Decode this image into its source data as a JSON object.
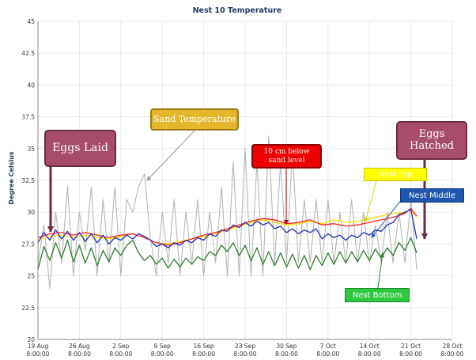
{
  "chart_data": {
    "type": "line",
    "title": "Nest 10 Temperature",
    "ylabel": "Degree Celsius",
    "xlabel": "",
    "ylim": [
      20,
      45
    ],
    "y_ticks": [
      "20",
      "22.5",
      "25",
      "27.5",
      "30",
      "32.5",
      "35",
      "37.5",
      "40",
      "42.5",
      "45"
    ],
    "x_ticks": [
      {
        "d": 0,
        "line1": "19 Aug",
        "line2": "8:00:00"
      },
      {
        "d": 7,
        "line1": "26 Aug",
        "line2": "8:00:00"
      },
      {
        "d": 14,
        "line1": "2 Sep",
        "line2": "8:00:00"
      },
      {
        "d": 21,
        "line1": "9 Sep",
        "line2": "8:00:00"
      },
      {
        "d": 28,
        "line1": "16 Sep",
        "line2": "8:00:00"
      },
      {
        "d": 35,
        "line1": "23 Sep",
        "line2": "8:00:00"
      },
      {
        "d": 42,
        "line1": "30 Sep",
        "line2": "8:00:00"
      },
      {
        "d": 49,
        "line1": "7 Oct",
        "line2": "8:00:00"
      },
      {
        "d": 56,
        "line1": "14 Oct",
        "line2": "8:00:00"
      },
      {
        "d": 63,
        "line1": "21 Oct",
        "line2": "8:00:00"
      },
      {
        "d": 70,
        "line1": "28 Oct",
        "line2": "8:00:00"
      }
    ],
    "grid": true,
    "series": [
      {
        "color": "#b0b0b0",
        "points": [
          [
            0,
            26
          ],
          [
            1,
            29
          ],
          [
            2,
            24
          ],
          [
            3,
            30
          ],
          [
            4,
            26
          ],
          [
            5,
            32
          ],
          [
            6,
            25
          ],
          [
            7,
            30
          ],
          [
            8,
            27
          ],
          [
            9,
            32
          ],
          [
            10,
            25
          ],
          [
            11,
            31
          ],
          [
            12,
            26
          ],
          [
            13,
            32
          ],
          [
            14,
            25
          ],
          [
            15,
            31
          ],
          [
            16,
            30
          ],
          [
            17,
            32
          ],
          [
            18,
            33
          ],
          [
            19,
            28
          ],
          [
            20,
            25
          ],
          [
            21,
            30
          ],
          [
            22,
            26
          ],
          [
            23,
            31
          ],
          [
            24,
            25
          ],
          [
            25,
            30
          ],
          [
            26,
            26
          ],
          [
            27,
            31
          ],
          [
            28,
            25
          ],
          [
            29,
            30
          ],
          [
            30,
            26
          ],
          [
            31,
            32
          ],
          [
            32,
            25
          ],
          [
            33,
            34
          ],
          [
            34,
            25
          ],
          [
            35,
            35
          ],
          [
            36,
            25
          ],
          [
            37,
            34
          ],
          [
            38,
            25
          ],
          [
            39,
            36
          ],
          [
            40,
            26
          ],
          [
            41,
            34
          ],
          [
            42,
            26
          ],
          [
            43,
            35
          ],
          [
            44,
            26
          ],
          [
            45,
            31
          ],
          [
            46,
            26
          ],
          [
            47,
            31
          ],
          [
            48,
            26
          ],
          [
            49,
            31
          ],
          [
            50,
            26
          ],
          [
            51,
            30
          ],
          [
            52,
            26
          ],
          [
            53,
            31
          ],
          [
            54,
            26
          ],
          [
            55,
            30
          ],
          [
            56,
            26
          ],
          [
            57,
            29
          ],
          [
            58,
            26
          ],
          [
            59,
            30
          ],
          [
            60,
            26
          ],
          [
            61,
            30
          ],
          [
            62,
            26
          ],
          [
            63,
            31
          ],
          [
            64,
            25.5
          ]
        ]
      },
      {
        "color": "#ffe000",
        "points": [
          [
            0,
            27.8
          ],
          [
            2,
            28.1
          ],
          [
            4,
            28.2
          ],
          [
            6,
            28.0
          ],
          [
            8,
            28.2
          ],
          [
            10,
            28.0
          ],
          [
            12,
            27.9
          ],
          [
            14,
            28.1
          ],
          [
            16,
            28.3
          ],
          [
            18,
            28.0
          ],
          [
            20,
            27.6
          ],
          [
            22,
            27.5
          ],
          [
            24,
            27.7
          ],
          [
            26,
            27.9
          ],
          [
            28,
            28.1
          ],
          [
            30,
            28.3
          ],
          [
            32,
            28.6
          ],
          [
            34,
            28.9
          ],
          [
            36,
            29.2
          ],
          [
            38,
            29.4
          ],
          [
            40,
            29.2
          ],
          [
            42,
            29.0
          ],
          [
            44,
            29.1
          ],
          [
            46,
            29.3
          ],
          [
            48,
            29.1
          ],
          [
            50,
            29.4
          ],
          [
            52,
            29.2
          ],
          [
            54,
            29.3
          ],
          [
            56,
            29.5
          ],
          [
            58,
            29.7
          ],
          [
            60,
            29.9
          ],
          [
            62,
            30.0
          ],
          [
            63,
            30.2
          ],
          [
            64,
            29.6
          ]
        ]
      },
      {
        "color": "#ff2020",
        "points": [
          [
            0,
            28.0
          ],
          [
            2,
            28.3
          ],
          [
            4,
            28.4
          ],
          [
            6,
            28.2
          ],
          [
            8,
            28.4
          ],
          [
            10,
            28.2
          ],
          [
            12,
            28.0
          ],
          [
            14,
            28.2
          ],
          [
            16,
            28.3
          ],
          [
            18,
            28.0
          ],
          [
            20,
            27.6
          ],
          [
            22,
            27.4
          ],
          [
            24,
            27.6
          ],
          [
            26,
            27.9
          ],
          [
            28,
            28.2
          ],
          [
            30,
            28.4
          ],
          [
            32,
            28.7
          ],
          [
            34,
            29.0
          ],
          [
            36,
            29.3
          ],
          [
            38,
            29.5
          ],
          [
            40,
            29.4
          ],
          [
            42,
            29.1
          ],
          [
            44,
            29.2
          ],
          [
            46,
            29.4
          ],
          [
            48,
            29.0
          ],
          [
            50,
            29.1
          ],
          [
            52,
            28.9
          ],
          [
            54,
            29.0
          ],
          [
            56,
            29.2
          ],
          [
            58,
            29.4
          ],
          [
            60,
            29.6
          ],
          [
            62,
            29.9
          ],
          [
            63,
            30.3
          ],
          [
            64,
            29.7
          ]
        ]
      },
      {
        "color": "#2030c0",
        "points": [
          [
            0,
            27.6
          ],
          [
            1,
            28.4
          ],
          [
            2,
            27.8
          ],
          [
            3,
            28.6
          ],
          [
            4,
            27.9
          ],
          [
            5,
            28.5
          ],
          [
            6,
            27.8
          ],
          [
            7,
            28.4
          ],
          [
            8,
            27.7
          ],
          [
            9,
            28.3
          ],
          [
            10,
            27.6
          ],
          [
            11,
            28.2
          ],
          [
            12,
            27.5
          ],
          [
            13,
            28.0
          ],
          [
            14,
            27.8
          ],
          [
            15,
            28.2
          ],
          [
            16,
            27.9
          ],
          [
            17,
            28.3
          ],
          [
            18,
            28.1
          ],
          [
            19,
            27.8
          ],
          [
            20,
            27.3
          ],
          [
            21,
            27.5
          ],
          [
            22,
            27.2
          ],
          [
            23,
            27.6
          ],
          [
            24,
            27.4
          ],
          [
            25,
            27.8
          ],
          [
            26,
            27.6
          ],
          [
            27,
            28.0
          ],
          [
            28,
            27.8
          ],
          [
            29,
            28.3
          ],
          [
            30,
            28.1
          ],
          [
            31,
            28.6
          ],
          [
            32,
            28.5
          ],
          [
            33,
            29.0
          ],
          [
            34,
            28.8
          ],
          [
            35,
            29.2
          ],
          [
            36,
            28.9
          ],
          [
            37,
            29.3
          ],
          [
            38,
            29.0
          ],
          [
            39,
            29.2
          ],
          [
            40,
            28.7
          ],
          [
            41,
            28.9
          ],
          [
            42,
            28.4
          ],
          [
            43,
            28.7
          ],
          [
            44,
            28.3
          ],
          [
            45,
            28.6
          ],
          [
            46,
            28.4
          ],
          [
            47,
            28.7
          ],
          [
            48,
            27.9
          ],
          [
            49,
            28.3
          ],
          [
            50,
            28.0
          ],
          [
            51,
            28.2
          ],
          [
            52,
            27.8
          ],
          [
            53,
            28.2
          ],
          [
            54,
            28.0
          ],
          [
            55,
            28.4
          ],
          [
            56,
            28.2
          ],
          [
            57,
            28.6
          ],
          [
            58,
            28.5
          ],
          [
            59,
            29.0
          ],
          [
            60,
            29.2
          ],
          [
            61,
            29.8
          ],
          [
            62,
            30.0
          ],
          [
            63,
            30.2
          ],
          [
            64,
            27.9
          ]
        ]
      },
      {
        "color": "#2e7d32",
        "points": [
          [
            0,
            25.5
          ],
          [
            1,
            27.3
          ],
          [
            2,
            26.2
          ],
          [
            3,
            27.6
          ],
          [
            4,
            26.4
          ],
          [
            5,
            27.8
          ],
          [
            6,
            26.1
          ],
          [
            7,
            27.4
          ],
          [
            8,
            26.0
          ],
          [
            9,
            27.2
          ],
          [
            10,
            25.8
          ],
          [
            11,
            27.0
          ],
          [
            12,
            26.1
          ],
          [
            13,
            27.2
          ],
          [
            14,
            26.6
          ],
          [
            15,
            27.4
          ],
          [
            16,
            27.8
          ],
          [
            17,
            26.8
          ],
          [
            18,
            26.2
          ],
          [
            19,
            26.6
          ],
          [
            20,
            25.9
          ],
          [
            21,
            26.4
          ],
          [
            22,
            25.6
          ],
          [
            23,
            26.3
          ],
          [
            24,
            25.7
          ],
          [
            25,
            26.4
          ],
          [
            26,
            25.9
          ],
          [
            27,
            26.5
          ],
          [
            28,
            26.2
          ],
          [
            29,
            26.9
          ],
          [
            30,
            26.6
          ],
          [
            31,
            27.4
          ],
          [
            32,
            26.9
          ],
          [
            33,
            27.6
          ],
          [
            34,
            26.6
          ],
          [
            35,
            27.4
          ],
          [
            36,
            26.2
          ],
          [
            37,
            27.2
          ],
          [
            38,
            25.9
          ],
          [
            39,
            26.9
          ],
          [
            40,
            25.8
          ],
          [
            41,
            26.8
          ],
          [
            42,
            25.7
          ],
          [
            43,
            26.7
          ],
          [
            44,
            25.6
          ],
          [
            45,
            26.6
          ],
          [
            46,
            25.5
          ],
          [
            47,
            26.6
          ],
          [
            48,
            25.8
          ],
          [
            49,
            26.8
          ],
          [
            50,
            25.9
          ],
          [
            51,
            26.9
          ],
          [
            52,
            26.0
          ],
          [
            53,
            26.9
          ],
          [
            54,
            26.1
          ],
          [
            55,
            27.0
          ],
          [
            56,
            26.2
          ],
          [
            57,
            27.1
          ],
          [
            58,
            26.4
          ],
          [
            59,
            27.2
          ],
          [
            60,
            26.6
          ],
          [
            61,
            27.6
          ],
          [
            62,
            27.0
          ],
          [
            63,
            28.0
          ],
          [
            64,
            26.8
          ]
        ]
      }
    ]
  },
  "annotations": {
    "sand_temp": {
      "label": "Sand Temperature",
      "bg": "#e5b62c",
      "border": "#9c7a14",
      "color": "#ffffff"
    },
    "below": {
      "label": "10 cm below sand level",
      "bg": "#ee0000",
      "border": "#880000",
      "color": "#ffffff"
    },
    "eggs_laid": {
      "label": "Eggs Laid",
      "bg": "#a84c6b",
      "border": "#6d2a43",
      "color": "#ffffff"
    },
    "eggs_hatched": {
      "label": "Eggs Hatched",
      "bg": "#a84c6b",
      "border": "#6d2a43",
      "color": "#ffffff"
    },
    "nest_top": {
      "label": "Nest Top",
      "bg": "#ffff00",
      "border": "#c9c900",
      "color": "#ffffff"
    },
    "nest_middle": {
      "label": "Nest Middle",
      "bg": "#1f56b0",
      "border": "#11347a",
      "color": "#ffffff"
    },
    "nest_bottom": {
      "label": "Nest Bottom",
      "bg": "#2fc93f",
      "border": "#1c8a29",
      "color": "#ffffff"
    }
  }
}
